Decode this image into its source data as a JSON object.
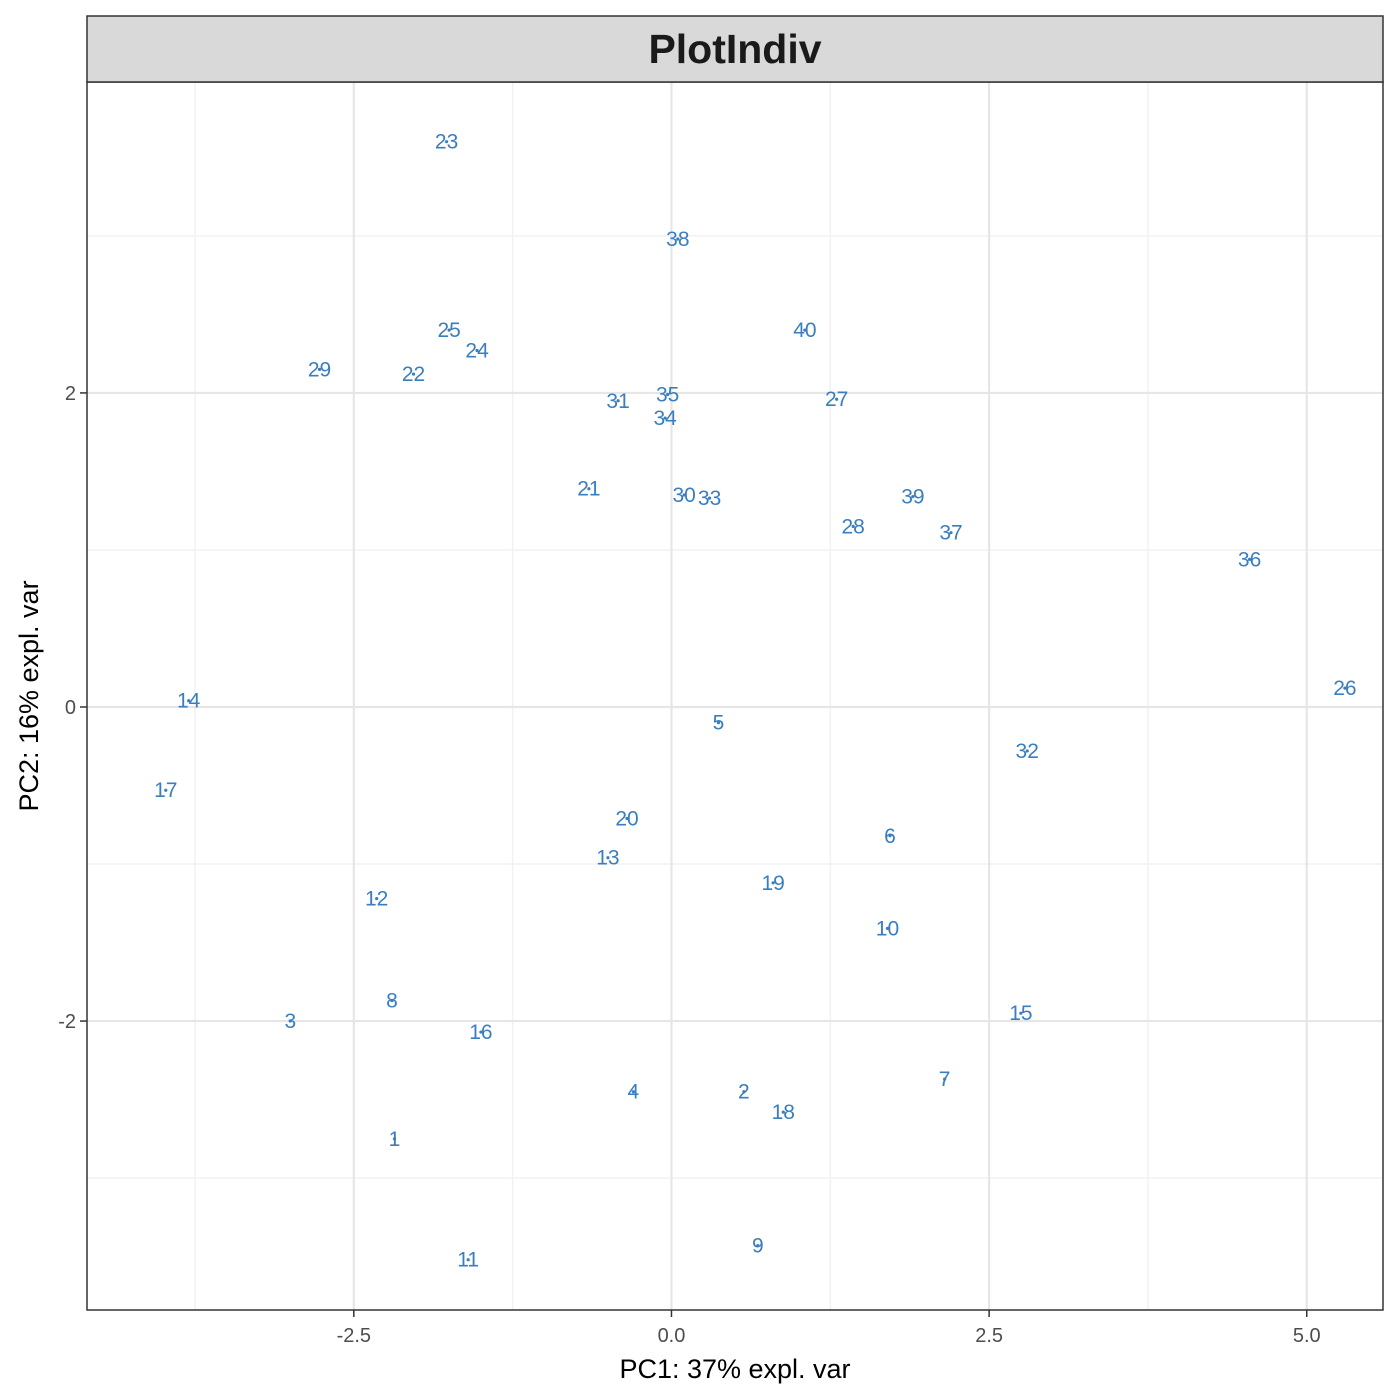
{
  "colors": {
    "points": "#3a7ebf",
    "grid_major": "#e6e6e6",
    "grid_minor": "#f2f2f2",
    "strip": "#d9d9d9",
    "frame": "#333333"
  },
  "chart_data": {
    "type": "scatter",
    "title": "PlotIndiv",
    "xlabel": "PC1: 37% expl. var",
    "ylabel": "PC2: 16% expl. var",
    "xlim": [
      -4.6,
      5.6
    ],
    "ylim": [
      -3.84,
      3.98
    ],
    "x_ticks": [
      -2.5,
      0.0,
      2.5,
      5.0
    ],
    "x_tick_labels": [
      "-2.5",
      "0.0",
      "2.5",
      "5.0"
    ],
    "y_ticks": [
      -2,
      0,
      2
    ],
    "y_tick_labels": [
      "-2",
      "0",
      "2"
    ],
    "grid": true,
    "legend": "none",
    "points": [
      {
        "label": "1",
        "x": -2.18,
        "y": -2.75
      },
      {
        "label": "2",
        "x": 0.57,
        "y": -2.45
      },
      {
        "label": "3",
        "x": -3.0,
        "y": -2.0
      },
      {
        "label": "4",
        "x": -0.3,
        "y": -2.45
      },
      {
        "label": "5",
        "x": 0.37,
        "y": -0.1
      },
      {
        "label": "6",
        "x": 1.72,
        "y": -0.82
      },
      {
        "label": "7",
        "x": 2.15,
        "y": -2.37
      },
      {
        "label": "8",
        "x": -2.2,
        "y": -1.87
      },
      {
        "label": "9",
        "x": 0.68,
        "y": -3.43
      },
      {
        "label": "10",
        "x": 1.7,
        "y": -1.41
      },
      {
        "label": "11",
        "x": -1.6,
        "y": -3.52
      },
      {
        "label": "12",
        "x": -2.32,
        "y": -1.22
      },
      {
        "label": "13",
        "x": -0.5,
        "y": -0.96
      },
      {
        "label": "14",
        "x": -3.8,
        "y": 0.04
      },
      {
        "label": "15",
        "x": 2.75,
        "y": -1.95
      },
      {
        "label": "16",
        "x": -1.5,
        "y": -2.07
      },
      {
        "label": "17",
        "x": -3.98,
        "y": -0.53
      },
      {
        "label": "18",
        "x": 0.88,
        "y": -2.58
      },
      {
        "label": "19",
        "x": 0.8,
        "y": -1.12
      },
      {
        "label": "20",
        "x": -0.35,
        "y": -0.71
      },
      {
        "label": "21",
        "x": -0.65,
        "y": 1.39
      },
      {
        "label": "22",
        "x": -2.03,
        "y": 2.12
      },
      {
        "label": "23",
        "x": -1.77,
        "y": 3.6
      },
      {
        "label": "24",
        "x": -1.53,
        "y": 2.27
      },
      {
        "label": "25",
        "x": -1.75,
        "y": 2.4
      },
      {
        "label": "26",
        "x": 5.3,
        "y": 0.12
      },
      {
        "label": "27",
        "x": 1.3,
        "y": 1.96
      },
      {
        "label": "28",
        "x": 1.43,
        "y": 1.15
      },
      {
        "label": "29",
        "x": -2.77,
        "y": 2.15
      },
      {
        "label": "30",
        "x": 0.1,
        "y": 1.35
      },
      {
        "label": "31",
        "x": -0.42,
        "y": 1.95
      },
      {
        "label": "32",
        "x": 2.8,
        "y": -0.28
      },
      {
        "label": "33",
        "x": 0.3,
        "y": 1.33
      },
      {
        "label": "34",
        "x": -0.05,
        "y": 1.84
      },
      {
        "label": "35",
        "x": -0.03,
        "y": 1.99
      },
      {
        "label": "36",
        "x": 4.55,
        "y": 0.94
      },
      {
        "label": "37",
        "x": 2.2,
        "y": 1.11
      },
      {
        "label": "38",
        "x": 0.05,
        "y": 2.98
      },
      {
        "label": "39",
        "x": 1.9,
        "y": 1.34
      },
      {
        "label": "40",
        "x": 1.05,
        "y": 2.4
      }
    ]
  }
}
